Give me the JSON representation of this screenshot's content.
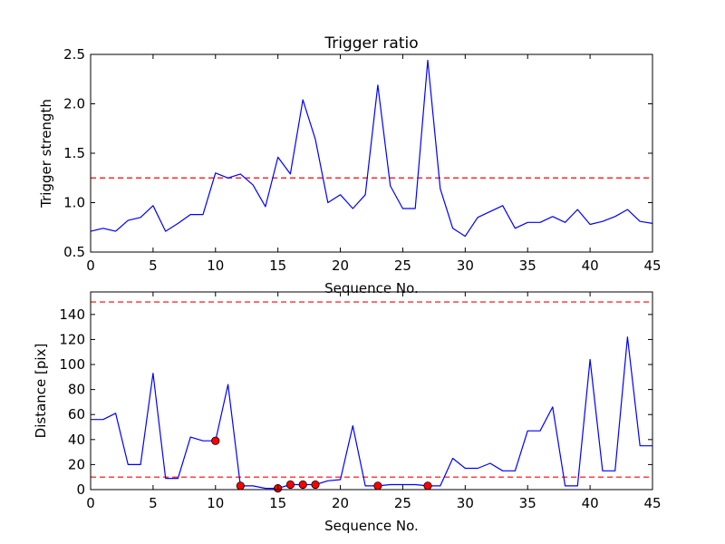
{
  "chart_data": [
    {
      "type": "line",
      "title": "Trigger ratio",
      "xlabel": "Sequence No.",
      "ylabel": "Trigger strength",
      "xlim": [
        0,
        45
      ],
      "ylim": [
        0.5,
        2.5
      ],
      "xticks": [
        "0",
        "5",
        "10",
        "15",
        "20",
        "25",
        "30",
        "35",
        "40",
        "45"
      ],
      "yticks": [
        "0.5",
        "1.0",
        "1.5",
        "2.0",
        "2.5"
      ],
      "xtick_values": [
        0,
        5,
        10,
        15,
        20,
        25,
        30,
        35,
        40,
        45
      ],
      "ytick_values": [
        0.5,
        1.0,
        1.5,
        2.0,
        2.5
      ],
      "grid": false,
      "series": [
        {
          "color": "#0000ff",
          "x": [
            0,
            1,
            2,
            3,
            4,
            5,
            6,
            7,
            8,
            9,
            10,
            11,
            12,
            13,
            14,
            15,
            16,
            17,
            18,
            19,
            20,
            21,
            22,
            23,
            24,
            25,
            26,
            27,
            28,
            29,
            30,
            31,
            32,
            33,
            34,
            35,
            36,
            37,
            38,
            39,
            40,
            41,
            42,
            43,
            44,
            45
          ],
          "values": [
            0.71,
            0.74,
            0.71,
            0.82,
            0.85,
            0.97,
            0.71,
            0.79,
            0.88,
            0.88,
            1.3,
            1.25,
            1.29,
            1.18,
            0.96,
            1.46,
            1.29,
            2.04,
            1.64,
            1.0,
            1.08,
            0.94,
            1.08,
            2.19,
            1.17,
            0.94,
            0.94,
            2.44,
            1.14,
            0.74,
            0.66,
            0.85,
            0.91,
            0.97,
            0.74,
            0.8,
            0.8,
            0.86,
            0.8,
            0.93,
            0.78,
            0.81,
            0.86,
            0.93,
            0.81,
            0.79
          ]
        }
      ],
      "reference_lines": [
        {
          "y": 1.25,
          "color": "#ff0000",
          "style": "dashed"
        }
      ]
    },
    {
      "type": "line",
      "title": "",
      "xlabel": "Sequence No.",
      "ylabel": "Distance [pix]",
      "xlim": [
        0,
        45
      ],
      "ylim": [
        0,
        158
      ],
      "xticks": [
        "0",
        "5",
        "10",
        "15",
        "20",
        "25",
        "30",
        "35",
        "40",
        "45"
      ],
      "yticks": [
        "0",
        "20",
        "40",
        "60",
        "80",
        "100",
        "120",
        "140"
      ],
      "xtick_values": [
        0,
        5,
        10,
        15,
        20,
        25,
        30,
        35,
        40,
        45
      ],
      "ytick_values": [
        0,
        20,
        40,
        60,
        80,
        100,
        120,
        140
      ],
      "grid": false,
      "series": [
        {
          "color": "#0000ff",
          "x": [
            0,
            1,
            2,
            3,
            4,
            5,
            6,
            7,
            8,
            9,
            10,
            11,
            12,
            13,
            14,
            15,
            16,
            17,
            18,
            19,
            20,
            21,
            22,
            23,
            24,
            25,
            26,
            27,
            28,
            29,
            30,
            31,
            32,
            33,
            34,
            35,
            36,
            37,
            38,
            39,
            40,
            41,
            42,
            43,
            44,
            45
          ],
          "values": [
            56,
            56,
            61,
            20,
            20,
            93,
            9,
            9,
            42,
            39,
            39,
            84,
            3,
            3,
            1,
            1,
            4,
            4,
            4,
            7,
            8,
            51,
            3,
            3,
            4,
            4,
            4,
            3,
            3,
            25,
            17,
            17,
            21,
            15,
            15,
            47,
            47,
            66,
            3,
            3,
            104,
            15,
            15,
            122,
            35,
            35
          ]
        }
      ],
      "highlighted_points": {
        "color": "#ff0000",
        "x": [
          10,
          12,
          15,
          16,
          17,
          18,
          23,
          27
        ],
        "y": [
          39,
          3,
          1,
          4,
          4,
          4,
          3,
          3
        ]
      },
      "reference_lines": [
        {
          "y": 150,
          "color": "#ff0000",
          "style": "dashed"
        },
        {
          "y": 10,
          "color": "#ff0000",
          "style": "dashed"
        }
      ]
    }
  ]
}
